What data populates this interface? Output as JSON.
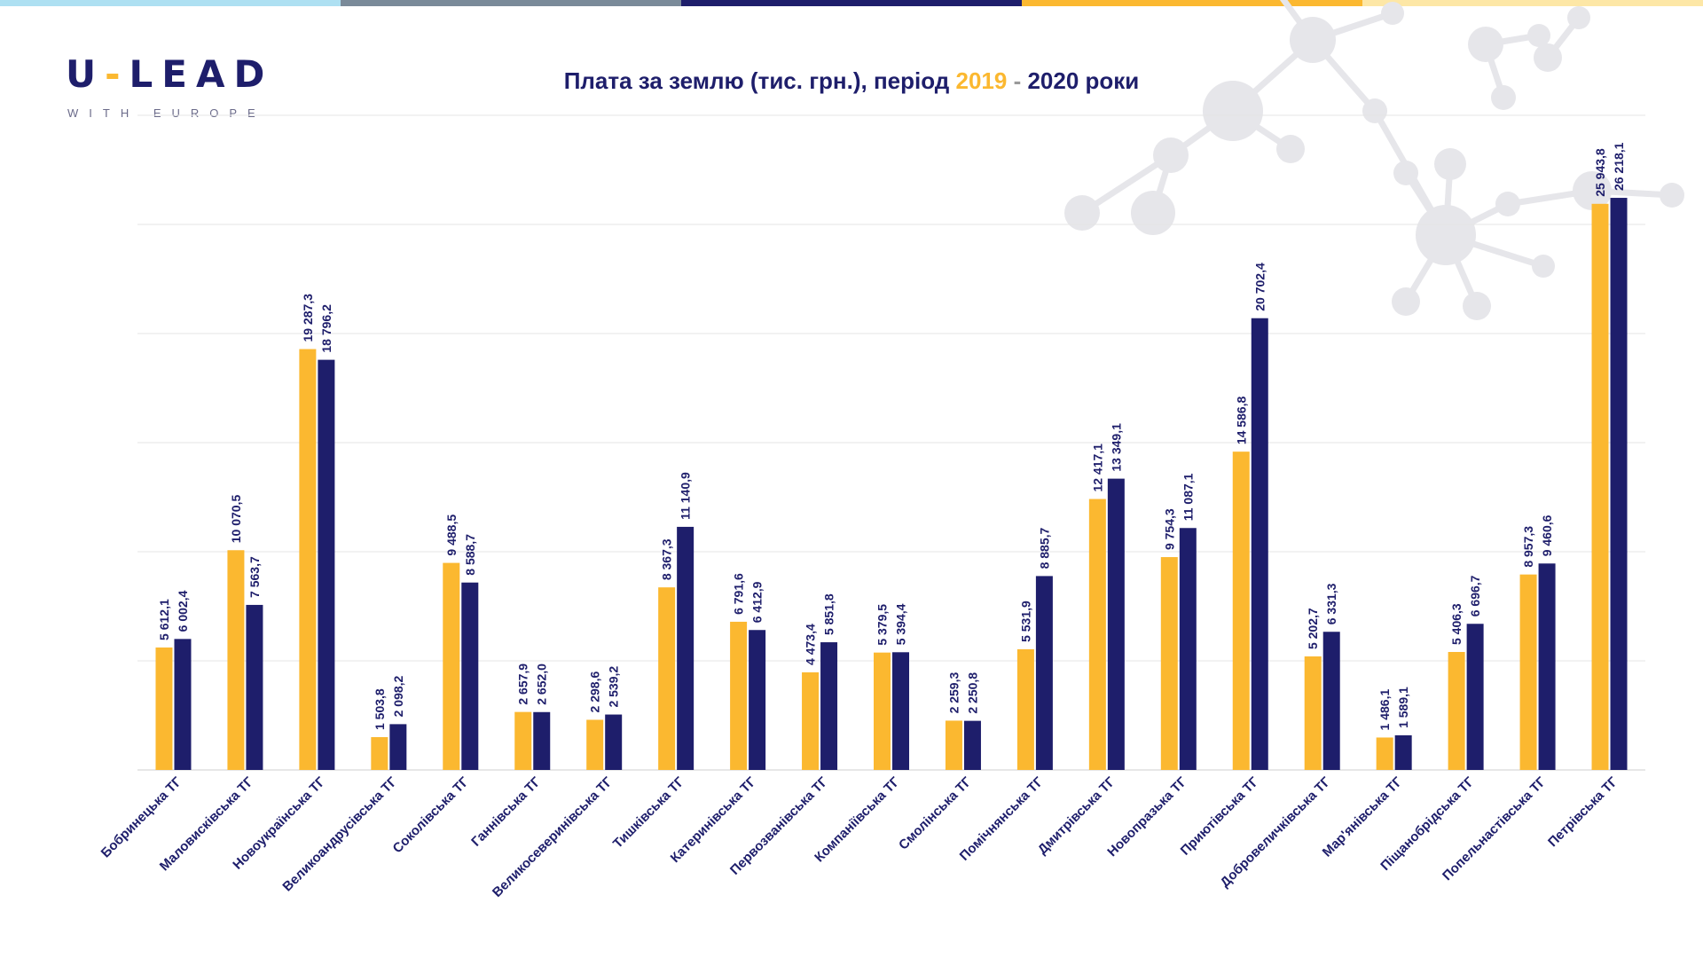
{
  "colors": {
    "y2019": "#fbb830",
    "y2020": "#1e1e6b",
    "topbar": [
      "#aee0f2",
      "#7a8a99",
      "#1e1e6b",
      "#fbb830",
      "#fde7a6"
    ]
  },
  "logo": {
    "brand_left": "U",
    "brand_dash": "-",
    "brand_right": "LEAD",
    "tagline": "WITH EUROPE"
  },
  "title": {
    "prefix": "Плата за землю (тис. грн.), період ",
    "year1": "2019",
    "dash": " - ",
    "year2": "2020",
    "suffix": " роки"
  },
  "chart_data": {
    "type": "bar",
    "ylim": [
      0,
      30000
    ],
    "grid": true,
    "categories": [
      "Бобринецька ТГ",
      "Маловисківська  ТГ",
      "Новоукраїнська ТГ",
      "Великоандрусівська  ТГ",
      "Соколівська ТГ",
      "Ганнівська ТГ",
      "Великосеверинівська  ТГ",
      "Тишківська ТГ",
      "Катеринівська  ТГ",
      "Первозванівська  ТГ",
      "Компаніївська  ТГ",
      "Смолінська  ТГ",
      "Помічнянська  ТГ",
      "Дмитрівська  ТГ",
      "Новопразька ТГ",
      "Приютівська ТГ",
      "Добровеличківська ТГ",
      "Мар'янівська ТГ",
      "Піщанобрідська ТГ",
      "Попельнастівська ТГ",
      "Петрівська  ТГ"
    ],
    "series": [
      {
        "values": [
          5612.1,
          10070.5,
          19287.3,
          1503.8,
          9488.5,
          2657.9,
          2298.6,
          8367.3,
          6791.6,
          4473.4,
          5379.5,
          2259.3,
          5531.9,
          12417.1,
          9754.3,
          14586.8,
          5202.7,
          1486.1,
          5406.3,
          8957.3,
          25943.8
        ],
        "labels": [
          "5 612,1",
          "10 070,5",
          "19 287,3",
          "1 503,8",
          "9 488,5",
          "2 657,9",
          "2 298,6",
          "8 367,3",
          "6 791,6",
          "4 473,4",
          "5 379,5",
          "2 259,3",
          "5 531,9",
          "12 417,1",
          "9 754,3",
          "14 586,8",
          "5 202,7",
          "1 486,1",
          "5 406,3",
          "8 957,3",
          "25 943,8"
        ]
      },
      {
        "values": [
          6002.4,
          7563.7,
          18796.2,
          2098.2,
          8588.7,
          2652.0,
          2539.2,
          11140.9,
          6412.9,
          5851.8,
          5394.4,
          2250.8,
          8885.7,
          13349.1,
          11087.1,
          20702.4,
          6331.3,
          1589.1,
          6696.7,
          9460.6,
          26218.1
        ],
        "labels": [
          "6 002,4",
          "7 563,7",
          "18 796,2",
          "2 098,2",
          "8 588,7",
          "2 652,0",
          "2 539,2",
          "11 140,9",
          "6 412,9",
          "5 851,8",
          "5 394,4",
          "2 250,8",
          "8 885,7",
          "13 349,1",
          "11 087,1",
          "20 702,4",
          "6 331,3",
          "1 589,1",
          "6 696,7",
          "9 460,6",
          "26 218,1"
        ]
      }
    ]
  }
}
